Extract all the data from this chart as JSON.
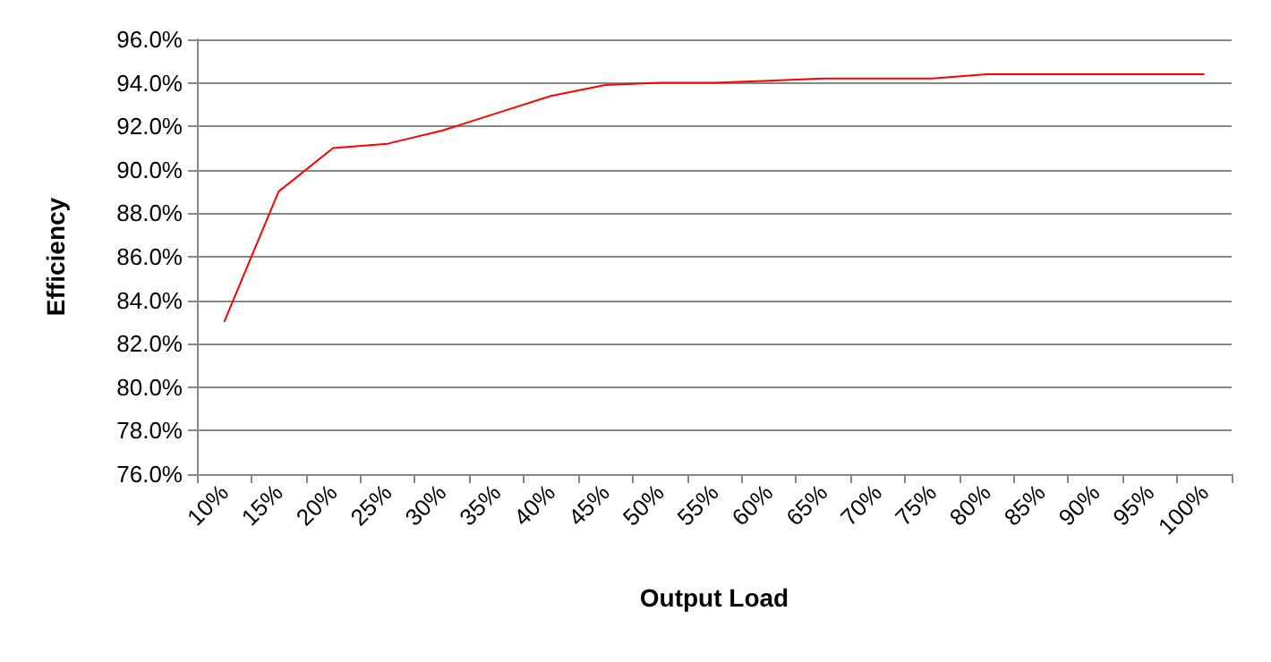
{
  "chart_data": {
    "type": "line",
    "xlabel": "Output Load",
    "ylabel": "Efficiency",
    "categories": [
      "10%",
      "15%",
      "20%",
      "25%",
      "30%",
      "35%",
      "40%",
      "45%",
      "50%",
      "55%",
      "60%",
      "65%",
      "70%",
      "75%",
      "80%",
      "85%",
      "90%",
      "95%",
      "100%"
    ],
    "series": [
      {
        "color": "#ff0000",
        "values": [
          83.0,
          89.0,
          91.0,
          91.2,
          91.8,
          92.6,
          93.4,
          93.9,
          94.0,
          94.0,
          94.1,
          94.2,
          94.2,
          94.2,
          94.4,
          94.4,
          94.4,
          94.4,
          94.4
        ]
      }
    ],
    "ylim": [
      76,
      96
    ],
    "yticks": [
      {
        "value": 76,
        "label": "76.0%"
      },
      {
        "value": 78,
        "label": "78.0%"
      },
      {
        "value": 80,
        "label": "80.0%"
      },
      {
        "value": 82,
        "label": "82.0%"
      },
      {
        "value": 84,
        "label": "84.0%"
      },
      {
        "value": 86,
        "label": "86.0%"
      },
      {
        "value": 88,
        "label": "88.0%"
      },
      {
        "value": 90,
        "label": "90.0%"
      },
      {
        "value": 92,
        "label": "92.0%"
      },
      {
        "value": 94,
        "label": "94.0%"
      },
      {
        "value": 96,
        "label": "96.0%"
      }
    ],
    "grid": "y",
    "marker": "none",
    "line_style": "solid"
  }
}
